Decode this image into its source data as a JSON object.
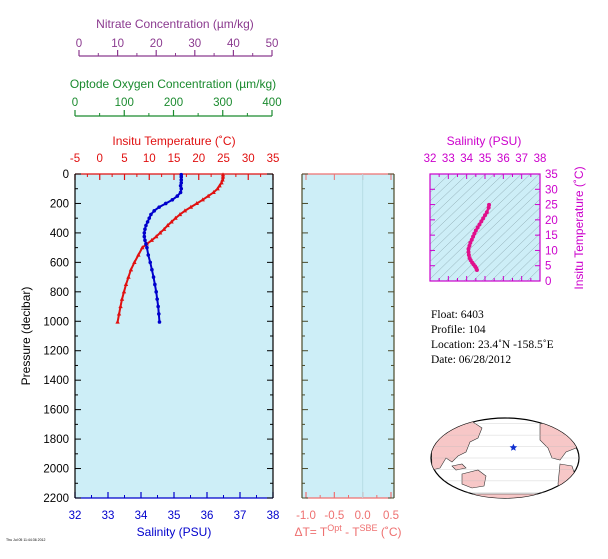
{
  "colors": {
    "nitrate": "#8b3a8f",
    "oxygen": "#1a8a2e",
    "temperature": "#e01010",
    "salinity_main": "#0000cc",
    "ts_salinity": "#cc00cc",
    "ts_curve": "#e0108c",
    "delta_t": "#ee7070",
    "panel_bg": "#cdeef7",
    "land": "#f7c7c7",
    "float_marker": "#1030d0",
    "frame": "#4a4a2a"
  },
  "chart_data": [
    {
      "type": "line",
      "panel": "profile",
      "ylabel": "Pressure (decibar)",
      "y_ticks": [
        "0",
        "200",
        "400",
        "600",
        "800",
        "1000",
        "1200",
        "1400",
        "1600",
        "1800",
        "2000",
        "2200"
      ],
      "ylim": [
        2200,
        0
      ],
      "grid": false,
      "axes": {
        "nitrate": {
          "label": "Nitrate Concentration (µm/kg)",
          "ticks": [
            "0",
            "10",
            "20",
            "30",
            "40",
            "50"
          ],
          "range": [
            0,
            50
          ]
        },
        "oxygen": {
          "label": "Optode Oxygen Concentration (µm/kg)",
          "ticks": [
            "0",
            "100",
            "200",
            "300",
            "400"
          ],
          "range": [
            0,
            400
          ]
        },
        "temperature": {
          "label": "Insitu Temperature (˚C)",
          "ticks": [
            "-5",
            "0",
            "5",
            "10",
            "15",
            "20",
            "25",
            "30",
            "35"
          ],
          "range": [
            -5,
            35
          ]
        },
        "salinity": {
          "label": "Salinity (PSU)",
          "ticks": [
            "32",
            "33",
            "34",
            "35",
            "36",
            "37",
            "38"
          ],
          "range": [
            32,
            38
          ]
        }
      },
      "series": [
        {
          "name": "Insitu Temperature (˚C)",
          "axis": "temperature",
          "points": [
            [
              24.9,
              5
            ],
            [
              24.9,
              20
            ],
            [
              24.8,
              40
            ],
            [
              24.6,
              60
            ],
            [
              24.2,
              80
            ],
            [
              23.8,
              100
            ],
            [
              23.0,
              125
            ],
            [
              21.9,
              150
            ],
            [
              20.8,
              175
            ],
            [
              19.6,
              200
            ],
            [
              18.4,
              225
            ],
            [
              17.2,
              250
            ],
            [
              16.2,
              275
            ],
            [
              15.3,
              300
            ],
            [
              14.5,
              325
            ],
            [
              13.7,
              350
            ],
            [
              13.0,
              375
            ],
            [
              12.2,
              400
            ],
            [
              11.4,
              425
            ],
            [
              10.5,
              450
            ],
            [
              9.5,
              475
            ],
            [
              8.6,
              500
            ],
            [
              7.8,
              550
            ],
            [
              7.0,
              600
            ],
            [
              6.3,
              650
            ],
            [
              5.8,
              700
            ],
            [
              5.3,
              750
            ],
            [
              4.9,
              800
            ],
            [
              4.5,
              850
            ],
            [
              4.2,
              900
            ],
            [
              3.9,
              950
            ],
            [
              3.6,
              1005
            ]
          ]
        },
        {
          "name": "Salinity (PSU)",
          "axis": "salinity",
          "points": [
            [
              35.22,
              5
            ],
            [
              35.22,
              20
            ],
            [
              35.22,
              40
            ],
            [
              35.22,
              60
            ],
            [
              35.2,
              80
            ],
            [
              35.22,
              100
            ],
            [
              35.2,
              125
            ],
            [
              35.1,
              150
            ],
            [
              34.95,
              175
            ],
            [
              34.75,
              200
            ],
            [
              34.55,
              225
            ],
            [
              34.4,
              250
            ],
            [
              34.3,
              275
            ],
            [
              34.25,
              300
            ],
            [
              34.2,
              325
            ],
            [
              34.15,
              350
            ],
            [
              34.12,
              375
            ],
            [
              34.1,
              400
            ],
            [
              34.1,
              425
            ],
            [
              34.12,
              450
            ],
            [
              34.15,
              475
            ],
            [
              34.18,
              500
            ],
            [
              34.22,
              550
            ],
            [
              34.28,
              600
            ],
            [
              34.33,
              650
            ],
            [
              34.38,
              700
            ],
            [
              34.42,
              750
            ],
            [
              34.46,
              800
            ],
            [
              34.49,
              850
            ],
            [
              34.52,
              900
            ],
            [
              34.54,
              950
            ],
            [
              34.56,
              1005
            ]
          ]
        }
      ]
    },
    {
      "type": "line",
      "panel": "delta_t",
      "xlabel": "ΔT= T",
      "xlabel_sup1": "Opt",
      "xlabel_mid": " - T",
      "xlabel_sup2": "SBE",
      "xlabel_tail": " (˚C)",
      "x_ticks": [
        "-1.0",
        "-0.5",
        "0.0",
        "0.5"
      ],
      "xlim": [
        -1.0,
        0.5
      ],
      "ylim": [
        2200,
        0
      ],
      "series": []
    },
    {
      "type": "scatter",
      "panel": "ts_diagram",
      "title": "Salinity (PSU)",
      "ylabel": "Insitu Temperature (˚C)",
      "x_ticks": [
        "32",
        "33",
        "34",
        "35",
        "36",
        "37",
        "38"
      ],
      "y_ticks": [
        "0",
        "5",
        "10",
        "15",
        "20",
        "25",
        "30",
        "35"
      ],
      "xlim": [
        32,
        38
      ],
      "ylim": [
        0,
        35
      ],
      "series": [
        {
          "points": [
            [
              35.22,
              24.9
            ],
            [
              35.2,
              24.0
            ],
            [
              35.1,
              22.5
            ],
            [
              35.0,
              21.5
            ],
            [
              34.9,
              20.5
            ],
            [
              34.8,
              19.5
            ],
            [
              34.7,
              18.5
            ],
            [
              34.6,
              17.5
            ],
            [
              34.5,
              16.5
            ],
            [
              34.42,
              15.5
            ],
            [
              34.35,
              14.5
            ],
            [
              34.28,
              13.5
            ],
            [
              34.2,
              12.5
            ],
            [
              34.15,
              11.5
            ],
            [
              34.1,
              10.5
            ],
            [
              34.1,
              9.5
            ],
            [
              34.12,
              8.5
            ],
            [
              34.16,
              7.5
            ],
            [
              34.22,
              6.8
            ],
            [
              34.3,
              6.0
            ],
            [
              34.38,
              5.4
            ],
            [
              34.46,
              4.8
            ],
            [
              34.52,
              4.2
            ],
            [
              34.56,
              3.6
            ]
          ]
        }
      ]
    }
  ],
  "info": {
    "float": "Float:  6403",
    "profile": "Profile:  104",
    "location": "Location:  23.4˚N  -158.5˚E",
    "date": "Date:  06/28/2012"
  },
  "map": {
    "marker_lon": -158.5,
    "marker_lat": 23.4
  },
  "footer_tiny": "Thu Jul 05 11:44:36 2012"
}
